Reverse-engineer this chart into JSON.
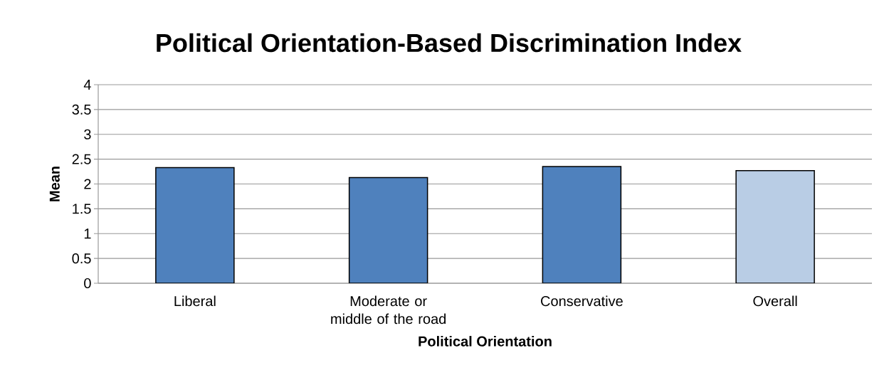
{
  "chart_data": {
    "type": "bar",
    "title": "Political Orientation-Based Discrimination Index",
    "xlabel": "Political Orientation",
    "ylabel": "Mean",
    "categories": [
      "Liberal",
      "Moderate or middle of the road",
      "Conservative",
      "Overall"
    ],
    "values": [
      2.33,
      2.13,
      2.35,
      2.27
    ],
    "colors": [
      "#4f81bd",
      "#4f81bd",
      "#4f81bd",
      "#b9cde5"
    ],
    "ylim": [
      0,
      4
    ],
    "yticks": [
      0,
      0.5,
      1,
      1.5,
      2,
      2.5,
      3,
      3.5,
      4
    ],
    "grid": "y"
  }
}
